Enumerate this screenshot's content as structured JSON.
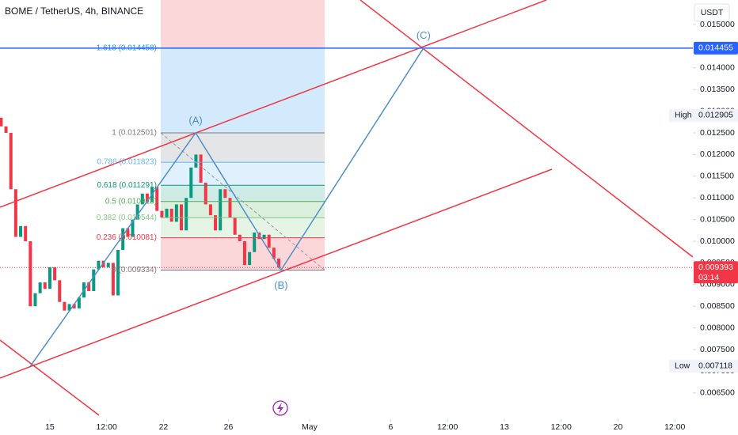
{
  "chart_data": {
    "type": "candlestick",
    "title": "BOME / TetherUS, 4h, BINANCE",
    "currency_button": "USDT",
    "up_color": "#089981",
    "down_color": "#f23645",
    "xlim": [
      -3.07,
      39.61
    ],
    "ylim": [
      0.005894,
      0.015566
    ],
    "xticks": [
      {
        "value": 0,
        "label": "15"
      },
      {
        "value": 3.5,
        "label": "12:00"
      },
      {
        "value": 7,
        "label": "22"
      },
      {
        "value": 11,
        "label": "26"
      },
      {
        "value": 16,
        "label": "May"
      },
      {
        "value": 21,
        "label": "6"
      },
      {
        "value": 24.5,
        "label": "12:00"
      },
      {
        "value": 28,
        "label": "13"
      },
      {
        "value": 31.5,
        "label": "12:00"
      },
      {
        "value": 35,
        "label": "20"
      },
      {
        "value": 38.5,
        "label": "12:00"
      }
    ],
    "yticks": [
      {
        "value": 0.015,
        "label": "0.015000"
      },
      {
        "value": 0.014,
        "label": "0.014000"
      },
      {
        "value": 0.0135,
        "label": "0.013500"
      },
      {
        "value": 0.013,
        "label": "0.013000"
      },
      {
        "value": 0.0125,
        "label": "0.012500"
      },
      {
        "value": 0.012,
        "label": "0.012000"
      },
      {
        "value": 0.0115,
        "label": "0.011500"
      },
      {
        "value": 0.011,
        "label": "0.011000"
      },
      {
        "value": 0.0105,
        "label": "0.010500"
      },
      {
        "value": 0.01,
        "label": "0.010000"
      },
      {
        "value": 0.0095,
        "label": "0.009500"
      },
      {
        "value": 0.009,
        "label": "0.009000"
      },
      {
        "value": 0.0085,
        "label": "0.008500"
      },
      {
        "value": 0.008,
        "label": "0.008000"
      },
      {
        "value": 0.0075,
        "label": "0.007500"
      },
      {
        "value": 0.007,
        "label": "0.007000"
      },
      {
        "value": 0.0065,
        "label": "0.006500"
      }
    ],
    "x": [
      -3,
      -2.7,
      -2.4,
      -2.1,
      -1.8,
      -1.5,
      -1.2,
      -0.9,
      -0.6,
      -0.3,
      0,
      0.3,
      0.6,
      0.9,
      1.2,
      1.5,
      1.8,
      2.1,
      2.4,
      2.7,
      3,
      3.3,
      3.6,
      3.9,
      4.2,
      4.5,
      4.8,
      5.1,
      5.4,
      5.7,
      6,
      6.3,
      6.6,
      6.9,
      7.2,
      7.5,
      7.8,
      8.1,
      8.4,
      8.7,
      9,
      9.3,
      9.6,
      9.9,
      10.2,
      10.5,
      10.8,
      11.1,
      11.4,
      11.7,
      12,
      12.3,
      12.6,
      12.9,
      13.2,
      13.5,
      13.8,
      14.1
    ],
    "open": [
      0.01285,
      0.01265,
      0.0125,
      0.0112,
      0.0101,
      0.01035,
      0.01,
      0.0085,
      0.0088,
      0.00905,
      0.0089,
      0.0094,
      0.0091,
      0.0086,
      0.0084,
      0.00855,
      0.00845,
      0.0087,
      0.00905,
      0.00885,
      0.00935,
      0.00955,
      0.0094,
      0.0095,
      0.00875,
      0.0098,
      0.0103,
      0.0101,
      0.0105,
      0.01085,
      0.0111,
      0.0109,
      0.01125,
      0.0107,
      0.01055,
      0.01075,
      0.01045,
      0.01085,
      0.01025,
      0.011,
      0.0117,
      0.012,
      0.01135,
      0.01085,
      0.0106,
      0.01025,
      0.0112,
      0.011,
      0.01055,
      0.01015,
      0.01,
      0.00945,
      0.00975,
      0.0102,
      0.01005,
      0.01015,
      0.00985,
      0.0096
    ],
    "high": {
      "label": "High",
      "value": 0.012905
    },
    "low": {
      "label": "Low",
      "value": 0.007118
    },
    "close": [
      0.01265,
      0.0125,
      0.0112,
      0.0101,
      0.01035,
      0.01,
      0.0085,
      0.0088,
      0.00905,
      0.0089,
      0.0094,
      0.0091,
      0.0086,
      0.0084,
      0.00855,
      0.00845,
      0.0087,
      0.00905,
      0.00885,
      0.00935,
      0.00955,
      0.0094,
      0.0095,
      0.00875,
      0.0098,
      0.0103,
      0.0101,
      0.0105,
      0.01085,
      0.0111,
      0.0109,
      0.01125,
      0.0107,
      0.01055,
      0.01075,
      0.01045,
      0.01085,
      0.01025,
      0.011,
      0.0117,
      0.012,
      0.01135,
      0.01085,
      0.0106,
      0.01025,
      0.0112,
      0.011,
      0.01055,
      0.01015,
      0.01,
      0.00945,
      0.00975,
      0.0102,
      0.01005,
      0.01015,
      0.00985,
      0.0096,
      0.009393
    ],
    "fib": {
      "x_start": 6.83,
      "x_end": 16.93,
      "color_above": "#f23645",
      "levels": [
        {
          "price": 0.014458,
          "label": "1.618 (0.014458)",
          "color": "#2196f3"
        },
        {
          "price": 0.012501,
          "label": "1 (0.012501)",
          "color": "#787b86"
        },
        {
          "price": 0.011823,
          "label": "0.786 (0.011823)",
          "color": "#64b5f6"
        },
        {
          "price": 0.011291,
          "label": "0.618 (0.011291)",
          "color": "#089981"
        },
        {
          "price": 0.010918,
          "label": "0.5 (0.010918)",
          "color": "#4caf50"
        },
        {
          "price": 0.010544,
          "label": "0.382 (0.010544)",
          "color": "#81c784"
        },
        {
          "price": 0.010081,
          "label": "0.236 (0.010081)",
          "color": "#f23645"
        },
        {
          "price": 0.009334,
          "label": "0 (0.009334)",
          "color": "#787b86"
        }
      ]
    },
    "pattern": {
      "color": "#4f8fc9",
      "points": [
        {
          "x": -1.2,
          "price": 0.007118
        },
        {
          "x": 8.98,
          "price": 0.012501,
          "label": "(A)"
        },
        {
          "x": 14.24,
          "price": 0.009334,
          "label": "(B)"
        },
        {
          "x": 23.02,
          "price": 0.014458,
          "label": "(C)"
        }
      ]
    },
    "horizontal_line": {
      "value": 0.014455,
      "color": "#2962ff"
    },
    "last_price": {
      "value": 0.009393,
      "countdown": "03:14",
      "color": "#f23645"
    }
  }
}
